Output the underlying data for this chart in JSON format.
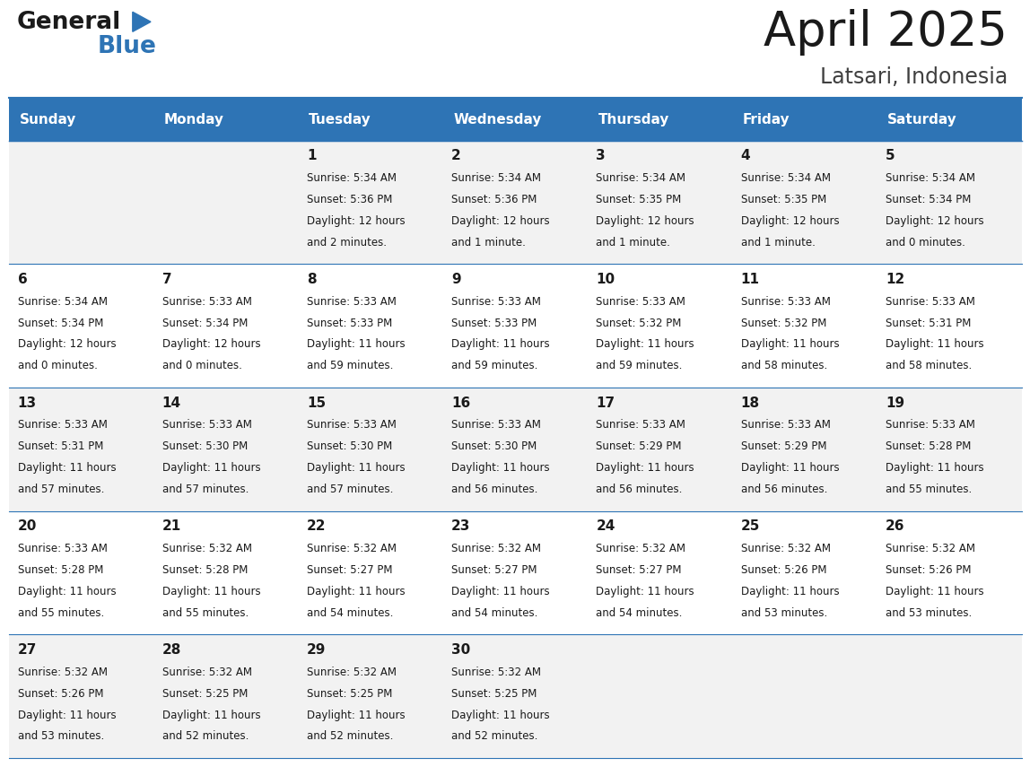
{
  "title": "April 2025",
  "subtitle": "Latsari, Indonesia",
  "days_of_week": [
    "Sunday",
    "Monday",
    "Tuesday",
    "Wednesday",
    "Thursday",
    "Friday",
    "Saturday"
  ],
  "header_bg": "#2e74b5",
  "header_text": "#ffffff",
  "row_bg_light": "#f2f2f2",
  "row_bg_white": "#ffffff",
  "cell_border": "#2e74b5",
  "title_color": "#1a1a1a",
  "subtitle_color": "#404040",
  "text_color": "#1a1a1a",
  "logo_black": "#1a1a1a",
  "logo_blue": "#2e74b5",
  "calendar": [
    [
      {
        "day": "",
        "sunrise": "",
        "sunset": "",
        "daylight": ""
      },
      {
        "day": "",
        "sunrise": "",
        "sunset": "",
        "daylight": ""
      },
      {
        "day": "1",
        "sunrise": "5:34 AM",
        "sunset": "5:36 PM",
        "daylight": "12 hours and 2 minutes."
      },
      {
        "day": "2",
        "sunrise": "5:34 AM",
        "sunset": "5:36 PM",
        "daylight": "12 hours and 1 minute."
      },
      {
        "day": "3",
        "sunrise": "5:34 AM",
        "sunset": "5:35 PM",
        "daylight": "12 hours and 1 minute."
      },
      {
        "day": "4",
        "sunrise": "5:34 AM",
        "sunset": "5:35 PM",
        "daylight": "12 hours and 1 minute."
      },
      {
        "day": "5",
        "sunrise": "5:34 AM",
        "sunset": "5:34 PM",
        "daylight": "12 hours and 0 minutes."
      }
    ],
    [
      {
        "day": "6",
        "sunrise": "5:34 AM",
        "sunset": "5:34 PM",
        "daylight": "12 hours and 0 minutes."
      },
      {
        "day": "7",
        "sunrise": "5:33 AM",
        "sunset": "5:34 PM",
        "daylight": "12 hours and 0 minutes."
      },
      {
        "day": "8",
        "sunrise": "5:33 AM",
        "sunset": "5:33 PM",
        "daylight": "11 hours and 59 minutes."
      },
      {
        "day": "9",
        "sunrise": "5:33 AM",
        "sunset": "5:33 PM",
        "daylight": "11 hours and 59 minutes."
      },
      {
        "day": "10",
        "sunrise": "5:33 AM",
        "sunset": "5:32 PM",
        "daylight": "11 hours and 59 minutes."
      },
      {
        "day": "11",
        "sunrise": "5:33 AM",
        "sunset": "5:32 PM",
        "daylight": "11 hours and 58 minutes."
      },
      {
        "day": "12",
        "sunrise": "5:33 AM",
        "sunset": "5:31 PM",
        "daylight": "11 hours and 58 minutes."
      }
    ],
    [
      {
        "day": "13",
        "sunrise": "5:33 AM",
        "sunset": "5:31 PM",
        "daylight": "11 hours and 57 minutes."
      },
      {
        "day": "14",
        "sunrise": "5:33 AM",
        "sunset": "5:30 PM",
        "daylight": "11 hours and 57 minutes."
      },
      {
        "day": "15",
        "sunrise": "5:33 AM",
        "sunset": "5:30 PM",
        "daylight": "11 hours and 57 minutes."
      },
      {
        "day": "16",
        "sunrise": "5:33 AM",
        "sunset": "5:30 PM",
        "daylight": "11 hours and 56 minutes."
      },
      {
        "day": "17",
        "sunrise": "5:33 AM",
        "sunset": "5:29 PM",
        "daylight": "11 hours and 56 minutes."
      },
      {
        "day": "18",
        "sunrise": "5:33 AM",
        "sunset": "5:29 PM",
        "daylight": "11 hours and 56 minutes."
      },
      {
        "day": "19",
        "sunrise": "5:33 AM",
        "sunset": "5:28 PM",
        "daylight": "11 hours and 55 minutes."
      }
    ],
    [
      {
        "day": "20",
        "sunrise": "5:33 AM",
        "sunset": "5:28 PM",
        "daylight": "11 hours and 55 minutes."
      },
      {
        "day": "21",
        "sunrise": "5:32 AM",
        "sunset": "5:28 PM",
        "daylight": "11 hours and 55 minutes."
      },
      {
        "day": "22",
        "sunrise": "5:32 AM",
        "sunset": "5:27 PM",
        "daylight": "11 hours and 54 minutes."
      },
      {
        "day": "23",
        "sunrise": "5:32 AM",
        "sunset": "5:27 PM",
        "daylight": "11 hours and 54 minutes."
      },
      {
        "day": "24",
        "sunrise": "5:32 AM",
        "sunset": "5:27 PM",
        "daylight": "11 hours and 54 minutes."
      },
      {
        "day": "25",
        "sunrise": "5:32 AM",
        "sunset": "5:26 PM",
        "daylight": "11 hours and 53 minutes."
      },
      {
        "day": "26",
        "sunrise": "5:32 AM",
        "sunset": "5:26 PM",
        "daylight": "11 hours and 53 minutes."
      }
    ],
    [
      {
        "day": "27",
        "sunrise": "5:32 AM",
        "sunset": "5:26 PM",
        "daylight": "11 hours and 53 minutes."
      },
      {
        "day": "28",
        "sunrise": "5:32 AM",
        "sunset": "5:25 PM",
        "daylight": "11 hours and 52 minutes."
      },
      {
        "day": "29",
        "sunrise": "5:32 AM",
        "sunset": "5:25 PM",
        "daylight": "11 hours and 52 minutes."
      },
      {
        "day": "30",
        "sunrise": "5:32 AM",
        "sunset": "5:25 PM",
        "daylight": "11 hours and 52 minutes."
      },
      {
        "day": "",
        "sunrise": "",
        "sunset": "",
        "daylight": ""
      },
      {
        "day": "",
        "sunrise": "",
        "sunset": "",
        "daylight": ""
      },
      {
        "day": "",
        "sunrise": "",
        "sunset": "",
        "daylight": ""
      }
    ]
  ]
}
